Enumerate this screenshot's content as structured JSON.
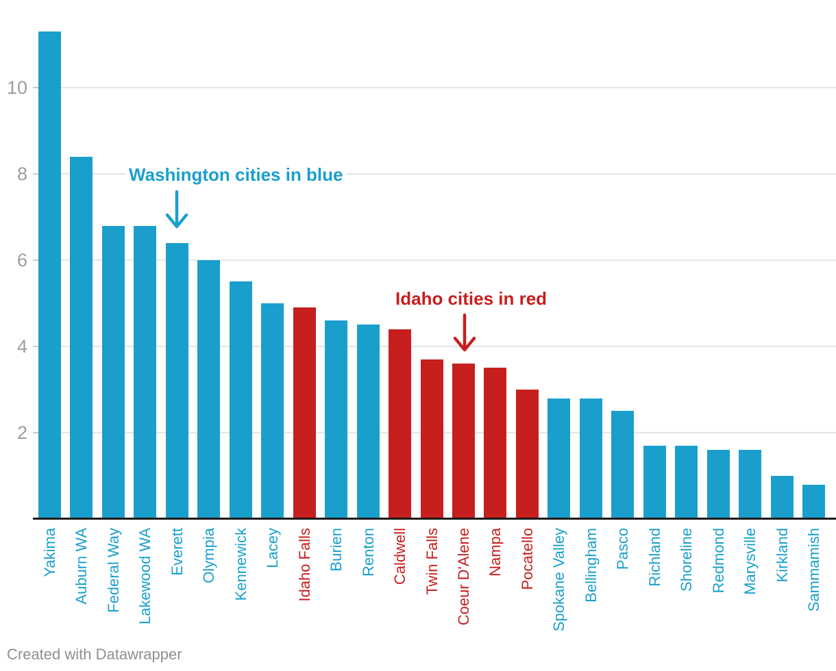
{
  "colors": {
    "washington_blue": "#1a9fcd",
    "idaho_red": "#c71e1e",
    "gridline": "#e6e6e6",
    "tick_dash": "#c9c9c9",
    "axis_line": "#191919",
    "tick_label": "#9d9d9d",
    "footer_text": "#8f8f8f"
  },
  "chart_data": {
    "type": "bar",
    "title": "",
    "xlabel": "",
    "ylabel": "",
    "ylim": [
      0,
      11.6
    ],
    "yticks": [
      "2",
      "4",
      "6",
      "8",
      "10"
    ],
    "grid": "horizontal",
    "legend": "none",
    "bars": [
      {
        "city": "Yakima",
        "value": 11.3,
        "group": "WA"
      },
      {
        "city": "Auburn WA",
        "value": 8.4,
        "group": "WA"
      },
      {
        "city": "Federal Way",
        "value": 6.8,
        "group": "WA"
      },
      {
        "city": "Lakewood WA",
        "value": 6.8,
        "group": "WA"
      },
      {
        "city": "Everett",
        "value": 6.4,
        "group": "WA"
      },
      {
        "city": "Olympia",
        "value": 6.0,
        "group": "WA"
      },
      {
        "city": "Kennewick",
        "value": 5.5,
        "group": "WA"
      },
      {
        "city": "Lacey",
        "value": 5.0,
        "group": "WA"
      },
      {
        "city": "Idaho Falls",
        "value": 4.9,
        "group": "ID"
      },
      {
        "city": "Burien",
        "value": 4.6,
        "group": "WA"
      },
      {
        "city": "Renton",
        "value": 4.5,
        "group": "WA"
      },
      {
        "city": "Caldwell",
        "value": 4.4,
        "group": "ID"
      },
      {
        "city": "Twin Falls",
        "value": 3.7,
        "group": "ID"
      },
      {
        "city": "Coeur D'Alene",
        "value": 3.6,
        "group": "ID"
      },
      {
        "city": "Nampa",
        "value": 3.5,
        "group": "ID"
      },
      {
        "city": "Pocatello",
        "value": 3.0,
        "group": "ID"
      },
      {
        "city": "Spokane Valley",
        "value": 2.8,
        "group": "WA"
      },
      {
        "city": "Bellingham",
        "value": 2.8,
        "group": "WA"
      },
      {
        "city": "Pasco",
        "value": 2.5,
        "group": "WA"
      },
      {
        "city": "Richland",
        "value": 1.7,
        "group": "WA"
      },
      {
        "city": "Shoreline",
        "value": 1.7,
        "group": "WA"
      },
      {
        "city": "Redmond",
        "value": 1.6,
        "group": "WA"
      },
      {
        "city": "Marysville",
        "value": 1.6,
        "group": "WA"
      },
      {
        "city": "Kirkland",
        "value": 1.0,
        "group": "WA"
      },
      {
        "city": "Sammamish",
        "value": 0.8,
        "group": "WA"
      }
    ],
    "annotations": [
      {
        "text": "Washington cities in blue",
        "group": "WA",
        "points_to": "Everett"
      },
      {
        "text": "Idaho cities in red",
        "group": "ID",
        "points_to": "Coeur D'Alene"
      }
    ]
  },
  "footer": {
    "credit": "Created with Datawrapper"
  }
}
